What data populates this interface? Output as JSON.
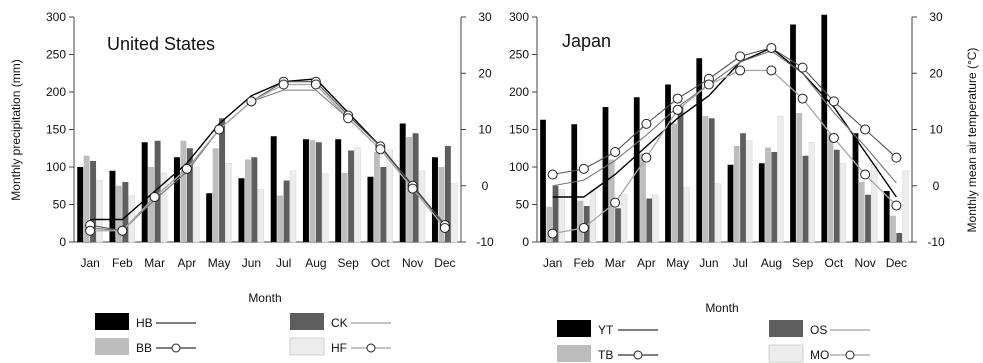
{
  "y_axis_left_label": "Monthly precipitation (mm)",
  "y_axis_right_label": "Monthly mean air temperature (°C)",
  "x_axis_label": "Month",
  "colors": {
    "black": "#000000",
    "dark_gray": "#5e5e5e",
    "light_gray": "#bdbdbd",
    "very_light": "#ececec"
  },
  "chart_data": [
    {
      "type": "bar",
      "title": "United States",
      "xlabel": "Month",
      "ylabel": "Monthly precipitation (mm)",
      "y2label": "Monthly mean air temperature (°C)",
      "ylim": [
        0,
        300
      ],
      "y2lim": [
        -10,
        30
      ],
      "categories": [
        "Jan",
        "Feb",
        "Mar",
        "Apr",
        "May",
        "Jun",
        "Jul",
        "Aug",
        "Sep",
        "Oct",
        "Nov",
        "Dec"
      ],
      "series": [
        {
          "name": "HB",
          "color": "#000000",
          "values": [
            100,
            95,
            133,
            113,
            65,
            85,
            141,
            137,
            137,
            87,
            158,
            113
          ]
        },
        {
          "name": "BB",
          "color": "#bdbdbd",
          "values": [
            115,
            75,
            100,
            135,
            125,
            110,
            62,
            136,
            92,
            120,
            140,
            100
          ]
        },
        {
          "name": "CK",
          "color": "#5e5e5e",
          "values": [
            108,
            80,
            135,
            125,
            165,
            113,
            82,
            133,
            122,
            100,
            145,
            128
          ]
        },
        {
          "name": "HF",
          "color": "#ececec",
          "values": [
            82,
            62,
            92,
            100,
            105,
            70,
            95,
            91,
            126,
            123,
            95,
            78
          ]
        }
      ],
      "temperature_series": [
        {
          "name": "HB",
          "values": [
            -6,
            -6,
            -1,
            4,
            11,
            16,
            18.5,
            19,
            13,
            7,
            0,
            -7
          ]
        },
        {
          "name": "BB",
          "values": [
            -7,
            -8,
            -2,
            3,
            10,
            15,
            18.5,
            18.5,
            12.5,
            7,
            0,
            -7
          ]
        },
        {
          "name": "CK",
          "values": [
            -7.5,
            -8,
            -2.5,
            2.5,
            10,
            15,
            17,
            17,
            12,
            6.5,
            -0.5,
            -7.5
          ]
        },
        {
          "name": "HF",
          "values": [
            -8,
            -8,
            -2,
            3,
            10,
            15,
            18,
            18,
            12,
            6.5,
            -0.5,
            -7.5
          ]
        }
      ],
      "legend": [
        {
          "name": "HB",
          "marker": false
        },
        {
          "name": "CK",
          "marker": false
        },
        {
          "name": "BB",
          "marker": true
        },
        {
          "name": "HF",
          "marker": true
        }
      ]
    },
    {
      "type": "bar",
      "title": "Japan",
      "xlabel": "Month",
      "ylabel": "Monthly precipitation (mm)",
      "y2label": "Monthly mean air temperature (°C)",
      "ylim": [
        0,
        300
      ],
      "y2lim": [
        -10,
        30
      ],
      "categories": [
        "Jan",
        "Feb",
        "Mar",
        "Apr",
        "May",
        "Jun",
        "Jul",
        "Aug",
        "Sep",
        "Oct",
        "Nov",
        "Dec"
      ],
      "series": [
        {
          "name": "YT",
          "color": "#000000",
          "values": [
            163,
            157,
            180,
            193,
            210,
            245,
            103,
            105,
            290,
            303,
            145,
            68
          ]
        },
        {
          "name": "TB",
          "color": "#bdbdbd",
          "values": [
            47,
            55,
            110,
            118,
            158,
            168,
            128,
            126,
            172,
            145,
            80,
            35
          ]
        },
        {
          "name": "OS",
          "color": "#5e5e5e",
          "values": [
            75,
            48,
            45,
            58,
            182,
            165,
            145,
            120,
            115,
            123,
            63,
            12
          ]
        },
        {
          "name": "MO",
          "color": "#ececec",
          "values": [
            70,
            70,
            63,
            63,
            73,
            78,
            135,
            168,
            133,
            105,
            105,
            95
          ]
        }
      ],
      "temperature_series": [
        {
          "name": "YT",
          "values": [
            -2,
            -2,
            2,
            7,
            12,
            16,
            22,
            24.5,
            20,
            14,
            6,
            -2
          ]
        },
        {
          "name": "TB",
          "values": [
            2,
            3,
            6,
            11,
            15.5,
            19,
            23,
            24.5,
            21,
            15,
            10,
            5
          ]
        },
        {
          "name": "OS",
          "values": [
            0,
            1,
            4.5,
            9,
            14,
            18,
            22,
            24,
            20,
            13,
            7,
            0.5
          ]
        },
        {
          "name": "MO",
          "values": [
            -8.5,
            -7.5,
            -3,
            5,
            13.5,
            18,
            20.5,
            20.5,
            15.5,
            8.5,
            2,
            -3.5
          ]
        }
      ],
      "legend": [
        {
          "name": "YT",
          "marker": false
        },
        {
          "name": "OS",
          "marker": false
        },
        {
          "name": "TB",
          "marker": true
        },
        {
          "name": "MO",
          "marker": true
        }
      ]
    }
  ]
}
